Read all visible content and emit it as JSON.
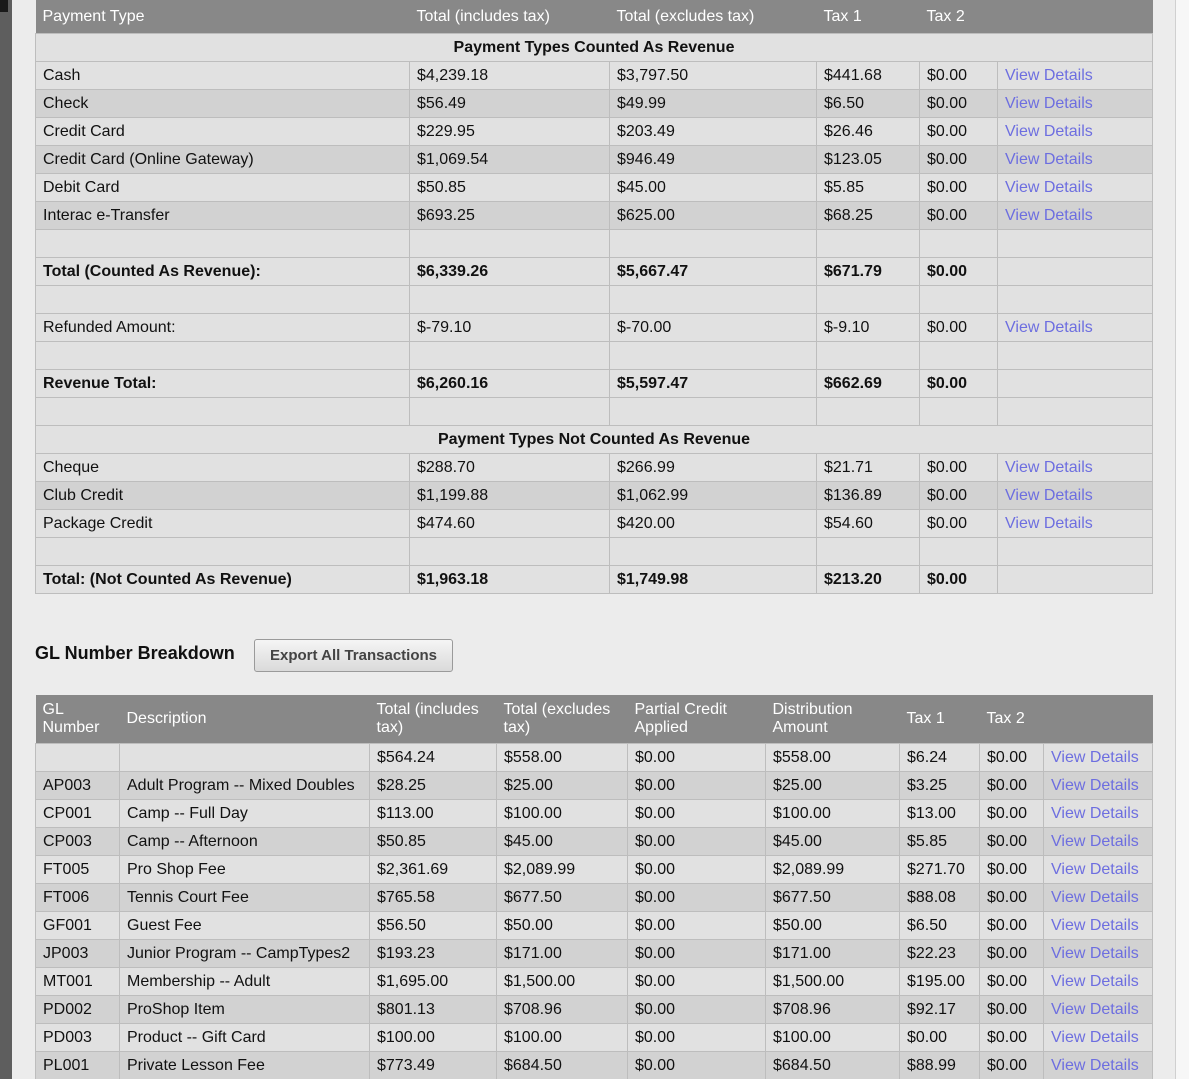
{
  "payments": {
    "headers": [
      "Payment Type",
      "Total (includes tax)",
      "Total (excludes tax)",
      "Tax 1",
      "Tax 2",
      ""
    ],
    "revenue_section_title": "Payment Types Counted As Revenue",
    "revenue_rows": [
      {
        "type": "Cash",
        "incl": "$4,239.18",
        "excl": "$3,797.50",
        "tax1": "$441.68",
        "tax2": "$0.00",
        "link": "View Details"
      },
      {
        "type": "Check",
        "incl": "$56.49",
        "excl": "$49.99",
        "tax1": "$6.50",
        "tax2": "$0.00",
        "link": "View Details"
      },
      {
        "type": "Credit Card",
        "incl": "$229.95",
        "excl": "$203.49",
        "tax1": "$26.46",
        "tax2": "$0.00",
        "link": "View Details"
      },
      {
        "type": "Credit Card (Online Gateway)",
        "incl": "$1,069.54",
        "excl": "$946.49",
        "tax1": "$123.05",
        "tax2": "$0.00",
        "link": "View Details"
      },
      {
        "type": "Debit Card",
        "incl": "$50.85",
        "excl": "$45.00",
        "tax1": "$5.85",
        "tax2": "$0.00",
        "link": "View Details"
      },
      {
        "type": "Interac e-Transfer",
        "incl": "$693.25",
        "excl": "$625.00",
        "tax1": "$68.25",
        "tax2": "$0.00",
        "link": "View Details"
      }
    ],
    "revenue_total": {
      "label": "Total (Counted As Revenue):",
      "incl": "$6,339.26",
      "excl": "$5,667.47",
      "tax1": "$671.79",
      "tax2": "$0.00"
    },
    "refunded": {
      "label": "Refunded Amount:",
      "incl": "$-79.10",
      "excl": "$-70.00",
      "tax1": "$-9.10",
      "tax2": "$0.00",
      "link": "View Details"
    },
    "revenue_grand_total": {
      "label": "Revenue Total:",
      "incl": "$6,260.16",
      "excl": "$5,597.47",
      "tax1": "$662.69",
      "tax2": "$0.00"
    },
    "nonrevenue_section_title": "Payment Types Not Counted As Revenue",
    "nonrevenue_rows": [
      {
        "type": "Cheque",
        "incl": "$288.70",
        "excl": "$266.99",
        "tax1": "$21.71",
        "tax2": "$0.00",
        "link": "View Details"
      },
      {
        "type": "Club Credit",
        "incl": "$1,199.88",
        "excl": "$1,062.99",
        "tax1": "$136.89",
        "tax2": "$0.00",
        "link": "View Details"
      },
      {
        "type": "Package Credit",
        "incl": "$474.60",
        "excl": "$420.00",
        "tax1": "$54.60",
        "tax2": "$0.00",
        "link": "View Details"
      }
    ],
    "nonrevenue_total": {
      "label": "Total: (Not Counted As Revenue)",
      "incl": "$1,963.18",
      "excl": "$1,749.98",
      "tax1": "$213.20",
      "tax2": "$0.00"
    }
  },
  "gl": {
    "heading": "GL Number Breakdown",
    "export_button": "Export All Transactions",
    "headers": [
      "GL Number",
      "Description",
      "Total (includes tax)",
      "Total (excludes tax)",
      "Partial Credit Applied",
      "Distribution Amount",
      "Tax 1",
      "Tax 2",
      ""
    ],
    "rows": [
      {
        "gl": "",
        "desc": "",
        "incl": "$564.24",
        "excl": "$558.00",
        "partial": "$0.00",
        "dist": "$558.00",
        "tax1": "$6.24",
        "tax2": "$0.00",
        "link": "View Details"
      },
      {
        "gl": "AP003",
        "desc": "Adult Program -- Mixed Doubles",
        "incl": "$28.25",
        "excl": "$25.00",
        "partial": "$0.00",
        "dist": "$25.00",
        "tax1": "$3.25",
        "tax2": "$0.00",
        "link": "View Details"
      },
      {
        "gl": "CP001",
        "desc": "Camp -- Full Day",
        "incl": "$113.00",
        "excl": "$100.00",
        "partial": "$0.00",
        "dist": "$100.00",
        "tax1": "$13.00",
        "tax2": "$0.00",
        "link": "View Details"
      },
      {
        "gl": "CP003",
        "desc": "Camp -- Afternoon",
        "incl": "$50.85",
        "excl": "$45.00",
        "partial": "$0.00",
        "dist": "$45.00",
        "tax1": "$5.85",
        "tax2": "$0.00",
        "link": "View Details"
      },
      {
        "gl": "FT005",
        "desc": "Pro Shop Fee",
        "incl": "$2,361.69",
        "excl": "$2,089.99",
        "partial": "$0.00",
        "dist": "$2,089.99",
        "tax1": "$271.70",
        "tax2": "$0.00",
        "link": "View Details"
      },
      {
        "gl": "FT006",
        "desc": "Tennis Court Fee",
        "incl": "$765.58",
        "excl": "$677.50",
        "partial": "$0.00",
        "dist": "$677.50",
        "tax1": "$88.08",
        "tax2": "$0.00",
        "link": "View Details"
      },
      {
        "gl": "GF001",
        "desc": "Guest Fee",
        "incl": "$56.50",
        "excl": "$50.00",
        "partial": "$0.00",
        "dist": "$50.00",
        "tax1": "$6.50",
        "tax2": "$0.00",
        "link": "View Details"
      },
      {
        "gl": "JP003",
        "desc": "Junior Program -- CampTypes2",
        "incl": "$193.23",
        "excl": "$171.00",
        "partial": "$0.00",
        "dist": "$171.00",
        "tax1": "$22.23",
        "tax2": "$0.00",
        "link": "View Details"
      },
      {
        "gl": "MT001",
        "desc": "Membership -- Adult",
        "incl": "$1,695.00",
        "excl": "$1,500.00",
        "partial": "$0.00",
        "dist": "$1,500.00",
        "tax1": "$195.00",
        "tax2": "$0.00",
        "link": "View Details"
      },
      {
        "gl": "PD002",
        "desc": "ProShop Item",
        "incl": "$801.13",
        "excl": "$708.96",
        "partial": "$0.00",
        "dist": "$708.96",
        "tax1": "$92.17",
        "tax2": "$0.00",
        "link": "View Details"
      },
      {
        "gl": "PD003",
        "desc": "Product -- Gift Card",
        "incl": "$100.00",
        "excl": "$100.00",
        "partial": "$0.00",
        "dist": "$100.00",
        "tax1": "$0.00",
        "tax2": "$0.00",
        "link": "View Details"
      },
      {
        "gl": "PL001",
        "desc": "Private Lesson Fee",
        "incl": "$773.49",
        "excl": "$684.50",
        "partial": "$0.00",
        "dist": "$684.50",
        "tax1": "$88.99",
        "tax2": "$0.00",
        "link": "View Details"
      }
    ]
  }
}
